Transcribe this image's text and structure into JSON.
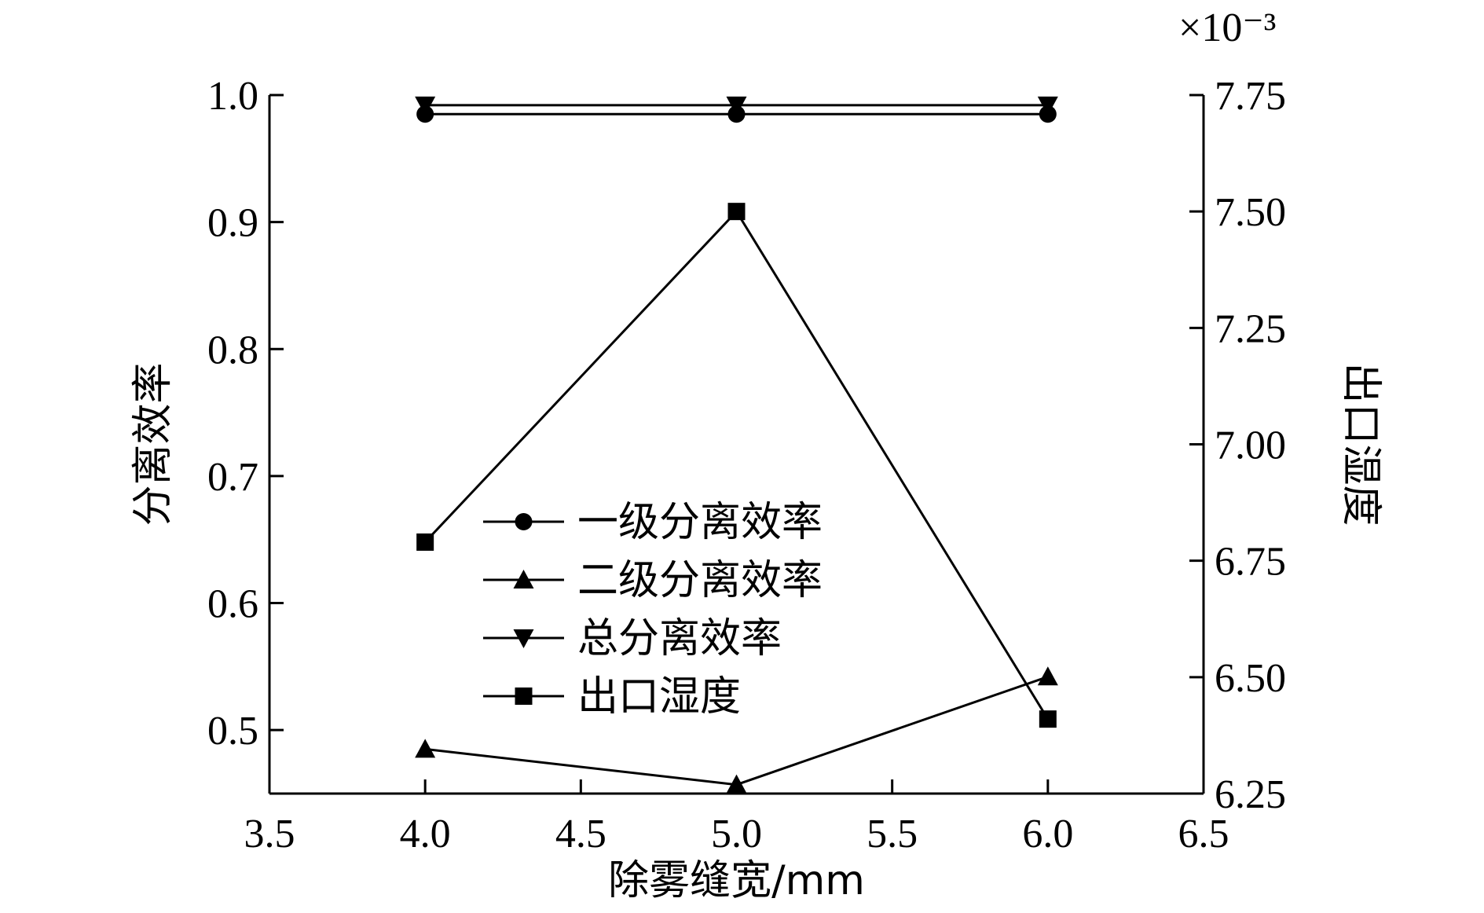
{
  "chart_data": {
    "type": "line",
    "xlabel": "除雾缝宽/mm",
    "ylabel": "分离效率",
    "y2label": "出口湿度",
    "y2_multiplier": "×10⁻³",
    "xlim": [
      3.5,
      6.5
    ],
    "ylim": [
      0.45,
      1.0
    ],
    "y2lim": [
      6.25,
      7.75
    ],
    "x_ticks": [
      "3.5",
      "4.0",
      "4.5",
      "5.0",
      "5.5",
      "6.0",
      "6.5"
    ],
    "y_ticks": [
      "0.5",
      "0.6",
      "0.7",
      "0.8",
      "0.9",
      "1.0"
    ],
    "y2_ticks": [
      "6.25",
      "6.50",
      "6.75",
      "7.00",
      "7.25",
      "7.50",
      "7.75"
    ],
    "grid": false,
    "legend_position": "center",
    "x": [
      4.0,
      5.0,
      6.0
    ],
    "series": [
      {
        "name": "一级分离效率",
        "marker": "circle",
        "axis": "left",
        "values": [
          0.985,
          0.985,
          0.985
        ]
      },
      {
        "name": "二级分离效率",
        "marker": "triangle-up",
        "axis": "left",
        "values": [
          0.485,
          0.457,
          0.542
        ]
      },
      {
        "name": "总分离效率",
        "marker": "triangle-down",
        "axis": "left",
        "values": [
          0.992,
          0.992,
          0.992
        ]
      },
      {
        "name": "出口湿度",
        "marker": "square",
        "axis": "right",
        "values": [
          6.79,
          7.5,
          6.41
        ]
      }
    ]
  }
}
